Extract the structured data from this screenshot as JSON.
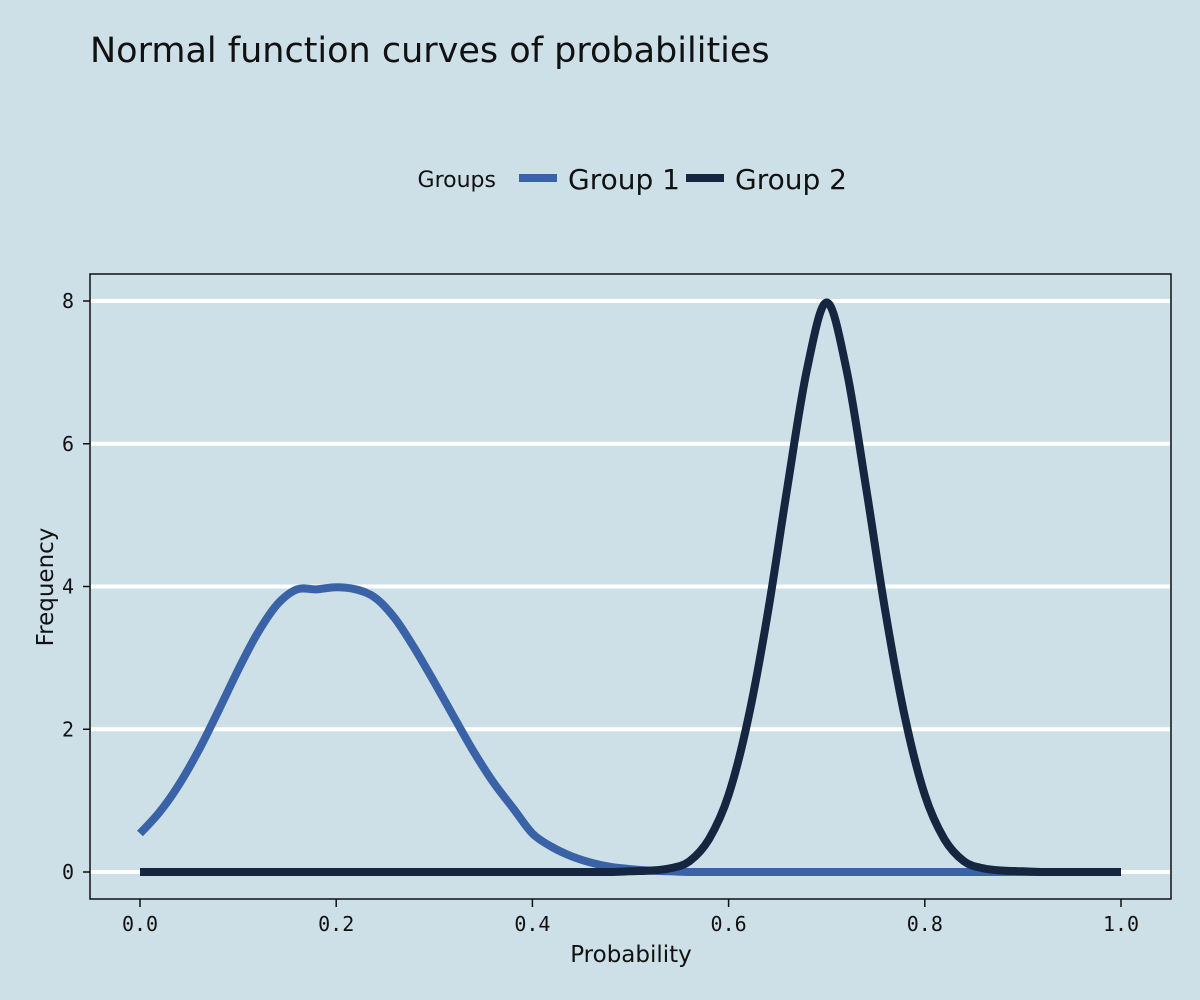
{
  "chart_data": {
    "type": "line",
    "title": "Normal function curves of probabilities",
    "xlabel": "Probability",
    "ylabel": "Frequency",
    "xlim": [
      0,
      1
    ],
    "ylim": [
      0,
      8
    ],
    "x_ticks": [
      "0.0",
      "0.2",
      "0.4",
      "0.6",
      "0.8",
      "1.0"
    ],
    "y_ticks": [
      "0",
      "2",
      "4",
      "6",
      "8"
    ],
    "grid": "horizontal",
    "legend": {
      "title": "Groups",
      "placement": "top"
    },
    "x": [
      0.0,
      0.02,
      0.04,
      0.06,
      0.08,
      0.1,
      0.12,
      0.14,
      0.16,
      0.18,
      0.2,
      0.22,
      0.24,
      0.26,
      0.28,
      0.3,
      0.32,
      0.34,
      0.36,
      0.38,
      0.4,
      0.42,
      0.44,
      0.46,
      0.48,
      0.5,
      0.52,
      0.54,
      0.56,
      0.58,
      0.6,
      0.62,
      0.64,
      0.66,
      0.68,
      0.7,
      0.72,
      0.74,
      0.76,
      0.78,
      0.8,
      0.82,
      0.84,
      0.86,
      0.88,
      0.9,
      0.92,
      0.94,
      0.96,
      0.98,
      1.0
    ],
    "series": [
      {
        "name": "Group 1",
        "color": "#3a62a6",
        "values": [
          0.54,
          0.84,
          1.23,
          1.71,
          2.26,
          2.83,
          3.35,
          3.75,
          3.96,
          3.96,
          3.99,
          3.96,
          3.84,
          3.55,
          3.13,
          2.66,
          2.17,
          1.69,
          1.26,
          0.9,
          0.54,
          0.35,
          0.22,
          0.13,
          0.07,
          0.04,
          0.02,
          0.01,
          0.0,
          0.0,
          0.0,
          0.0,
          0.0,
          0.0,
          0.0,
          0.0,
          0.0,
          0.0,
          0.0,
          0.0,
          0.0,
          0.0,
          0.0,
          0.0,
          0.0,
          0.0,
          0.0,
          0.0,
          0.0,
          0.0,
          0.0
        ]
      },
      {
        "name": "Group 2",
        "color": "#152740",
        "values": [
          0.0,
          0.0,
          0.0,
          0.0,
          0.0,
          0.0,
          0.0,
          0.0,
          0.0,
          0.0,
          0.0,
          0.0,
          0.0,
          0.0,
          0.0,
          0.0,
          0.0,
          0.0,
          0.0,
          0.0,
          0.0,
          0.0,
          0.0,
          0.0,
          0.0,
          0.01,
          0.02,
          0.05,
          0.15,
          0.46,
          1.08,
          2.15,
          3.63,
          5.4,
          7.05,
          7.98,
          7.05,
          5.4,
          3.63,
          2.15,
          1.08,
          0.46,
          0.15,
          0.05,
          0.02,
          0.01,
          0.0,
          0.0,
          0.0,
          0.0,
          0.0
        ]
      }
    ]
  }
}
